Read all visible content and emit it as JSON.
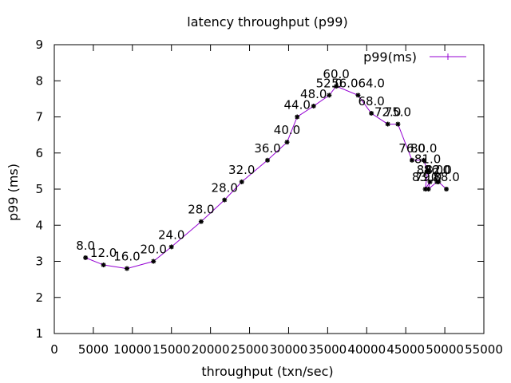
{
  "chart_data": {
    "type": "line",
    "title": "latency throughput (p99)",
    "xlabel": "throughput (txn/sec)",
    "ylabel": "p99 (ms)",
    "xlim": [
      0,
      55000
    ],
    "ylim": [
      1,
      9
    ],
    "xticks": [
      0,
      5000,
      10000,
      15000,
      20000,
      25000,
      30000,
      35000,
      40000,
      45000,
      50000,
      55000
    ],
    "yticks": [
      1,
      2,
      3,
      4,
      5,
      6,
      7,
      8,
      9
    ],
    "legend_position": "top-right",
    "grid": false,
    "series": [
      {
        "name": "p99(ms)",
        "color": "#9400d3",
        "points": [
          {
            "x": 4000,
            "y": 3.1,
            "label": "8.0"
          },
          {
            "x": 6300,
            "y": 2.9,
            "label": "12.0"
          },
          {
            "x": 9300,
            "y": 2.8,
            "label": "16.0"
          },
          {
            "x": 12700,
            "y": 3.0,
            "label": "20.0"
          },
          {
            "x": 15000,
            "y": 3.4,
            "label": "24.0"
          },
          {
            "x": 18800,
            "y": 4.1,
            "label": "28.0"
          },
          {
            "x": 21800,
            "y": 4.7,
            "label": "28.0"
          },
          {
            "x": 24000,
            "y": 5.2,
            "label": "32.0"
          },
          {
            "x": 27300,
            "y": 5.8,
            "label": "36.0"
          },
          {
            "x": 29800,
            "y": 6.3,
            "label": "40.0"
          },
          {
            "x": 31100,
            "y": 7.0,
            "label": "44.0"
          },
          {
            "x": 33200,
            "y": 7.3,
            "label": "48.0"
          },
          {
            "x": 35200,
            "y": 7.6,
            "label": "52.0"
          },
          {
            "x": 36100,
            "y": 7.85,
            "label": "60.0"
          },
          {
            "x": 38900,
            "y": 7.6,
            "label": "56.064.0"
          },
          {
            "x": 40600,
            "y": 7.1,
            "label": "68.0"
          },
          {
            "x": 42700,
            "y": 6.8,
            "label": "72.0"
          },
          {
            "x": 44000,
            "y": 6.8,
            "label": "75.0"
          },
          {
            "x": 45800,
            "y": 5.8,
            "label": "76.0"
          },
          {
            "x": 47300,
            "y": 5.8,
            "label": "80.0"
          },
          {
            "x": 47800,
            "y": 5.5,
            "label": "81.0"
          },
          {
            "x": 47500,
            "y": 5.0,
            "label": "83.0"
          },
          {
            "x": 48100,
            "y": 5.2,
            "label": "84.0"
          },
          {
            "x": 47900,
            "y": 5.0,
            "label": "79.0"
          },
          {
            "x": 49000,
            "y": 5.2,
            "label": "86.0"
          },
          {
            "x": 49200,
            "y": 5.2,
            "label": "82.0"
          },
          {
            "x": 50200,
            "y": 5.0,
            "label": "88.0"
          }
        ]
      }
    ]
  }
}
